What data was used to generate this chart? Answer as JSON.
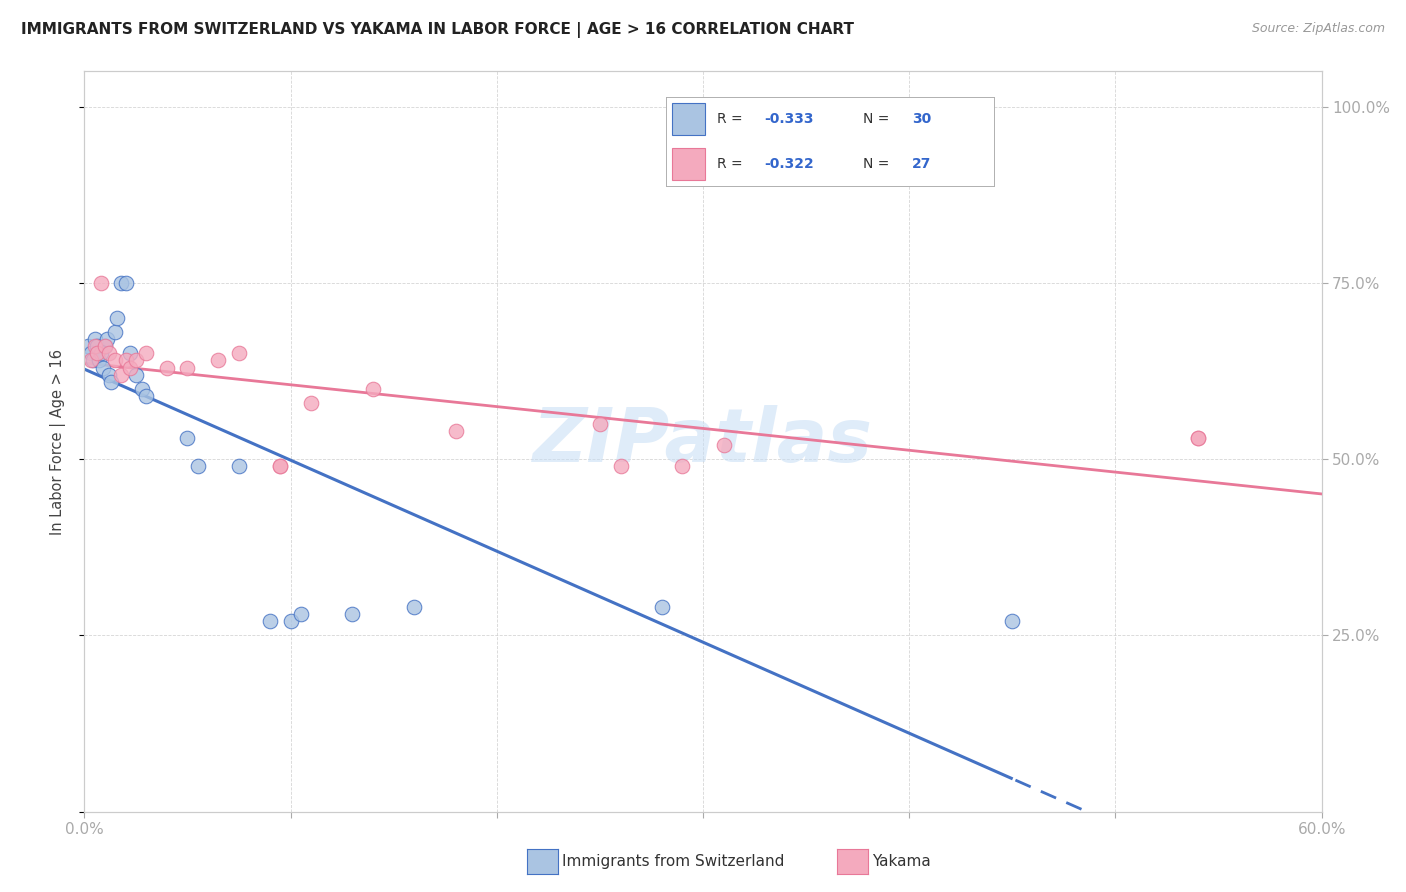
{
  "title": "IMMIGRANTS FROM SWITZERLAND VS YAKAMA IN LABOR FORCE | AGE > 16 CORRELATION CHART",
  "source": "Source: ZipAtlas.com",
  "ylabel": "In Labor Force | Age > 16",
  "xlim": [
    0.0,
    0.6
  ],
  "ylim": [
    0.0,
    1.05
  ],
  "right_y_ticks": [
    0.25,
    0.5,
    0.75,
    1.0
  ],
  "right_y_tick_labels": [
    "25.0%",
    "50.0%",
    "75.0%",
    "100.0%"
  ],
  "legend_r1": "-0.333",
  "legend_n1": "30",
  "legend_r2": "-0.322",
  "legend_n2": "27",
  "color_blue": "#aac4e2",
  "color_pink": "#f4aabe",
  "color_blue_line": "#4472c4",
  "color_pink_line": "#e87898",
  "color_axis_text": "#3366cc",
  "watermark": "ZIPatlas",
  "swiss_x": [
    0.002,
    0.003,
    0.004,
    0.005,
    0.006,
    0.007,
    0.008,
    0.009,
    0.01,
    0.011,
    0.012,
    0.013,
    0.015,
    0.016,
    0.018,
    0.02,
    0.022,
    0.025,
    0.028,
    0.03,
    0.05,
    0.055,
    0.075,
    0.09,
    0.1,
    0.105,
    0.13,
    0.16,
    0.28,
    0.45
  ],
  "swiss_y": [
    0.66,
    0.65,
    0.64,
    0.67,
    0.66,
    0.64,
    0.65,
    0.63,
    0.66,
    0.67,
    0.62,
    0.61,
    0.68,
    0.7,
    0.75,
    0.75,
    0.65,
    0.62,
    0.6,
    0.59,
    0.53,
    0.49,
    0.49,
    0.27,
    0.27,
    0.28,
    0.28,
    0.29,
    0.29,
    0.27
  ],
  "yakama_x": [
    0.003,
    0.005,
    0.006,
    0.008,
    0.01,
    0.012,
    0.015,
    0.018,
    0.02,
    0.022,
    0.025,
    0.03,
    0.04,
    0.05,
    0.065,
    0.075,
    0.095,
    0.095,
    0.11,
    0.14,
    0.18,
    0.25,
    0.26,
    0.29,
    0.31,
    0.54,
    0.54
  ],
  "yakama_y": [
    0.64,
    0.66,
    0.65,
    0.75,
    0.66,
    0.65,
    0.64,
    0.62,
    0.64,
    0.63,
    0.64,
    0.65,
    0.63,
    0.63,
    0.64,
    0.65,
    0.49,
    0.49,
    0.58,
    0.6,
    0.54,
    0.55,
    0.49,
    0.49,
    0.52,
    0.53,
    0.53
  ]
}
